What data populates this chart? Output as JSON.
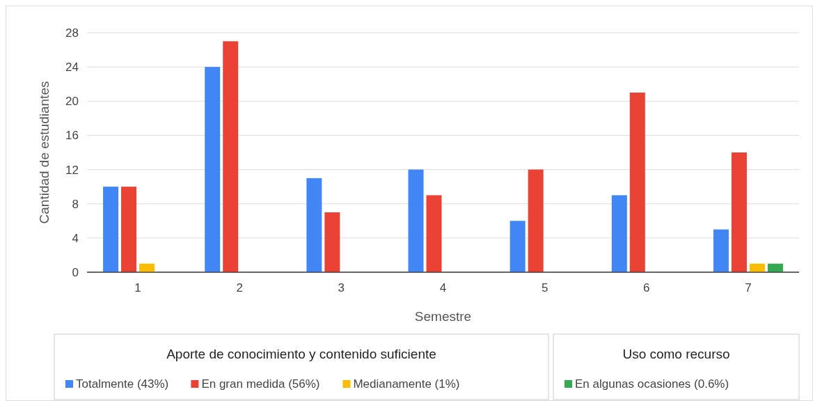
{
  "chart_data": {
    "type": "bar",
    "xlabel": "Semestre",
    "ylabel": "Cantidad de estudiantes",
    "categories": [
      "1",
      "2",
      "3",
      "4",
      "5",
      "6",
      "7"
    ],
    "series": [
      {
        "name": "Totalmente (43%)",
        "color": "#4285f4",
        "values": [
          10,
          24,
          11,
          12,
          6,
          9,
          5
        ]
      },
      {
        "name": "En gran medida (56%)",
        "color": "#ea4335",
        "values": [
          10,
          27,
          7,
          9,
          12,
          21,
          14
        ]
      },
      {
        "name": "Medianamente (1%)",
        "color": "#fbbc04",
        "values": [
          1,
          0,
          0,
          0,
          0,
          0,
          1
        ]
      },
      {
        "name": "En algunas ocasiones (0.6%)",
        "color": "#34a853",
        "values": [
          0,
          0,
          0,
          0,
          0,
          0,
          1
        ]
      }
    ],
    "annotations": [
      "Aporte de conocimiento y contenido suficiente",
      "Uso como recurso"
    ],
    "ylim": [
      0,
      28
    ],
    "yticks": [
      0,
      4,
      8,
      12,
      16,
      20,
      24,
      28
    ],
    "grid": "y",
    "legend": "bottom"
  }
}
